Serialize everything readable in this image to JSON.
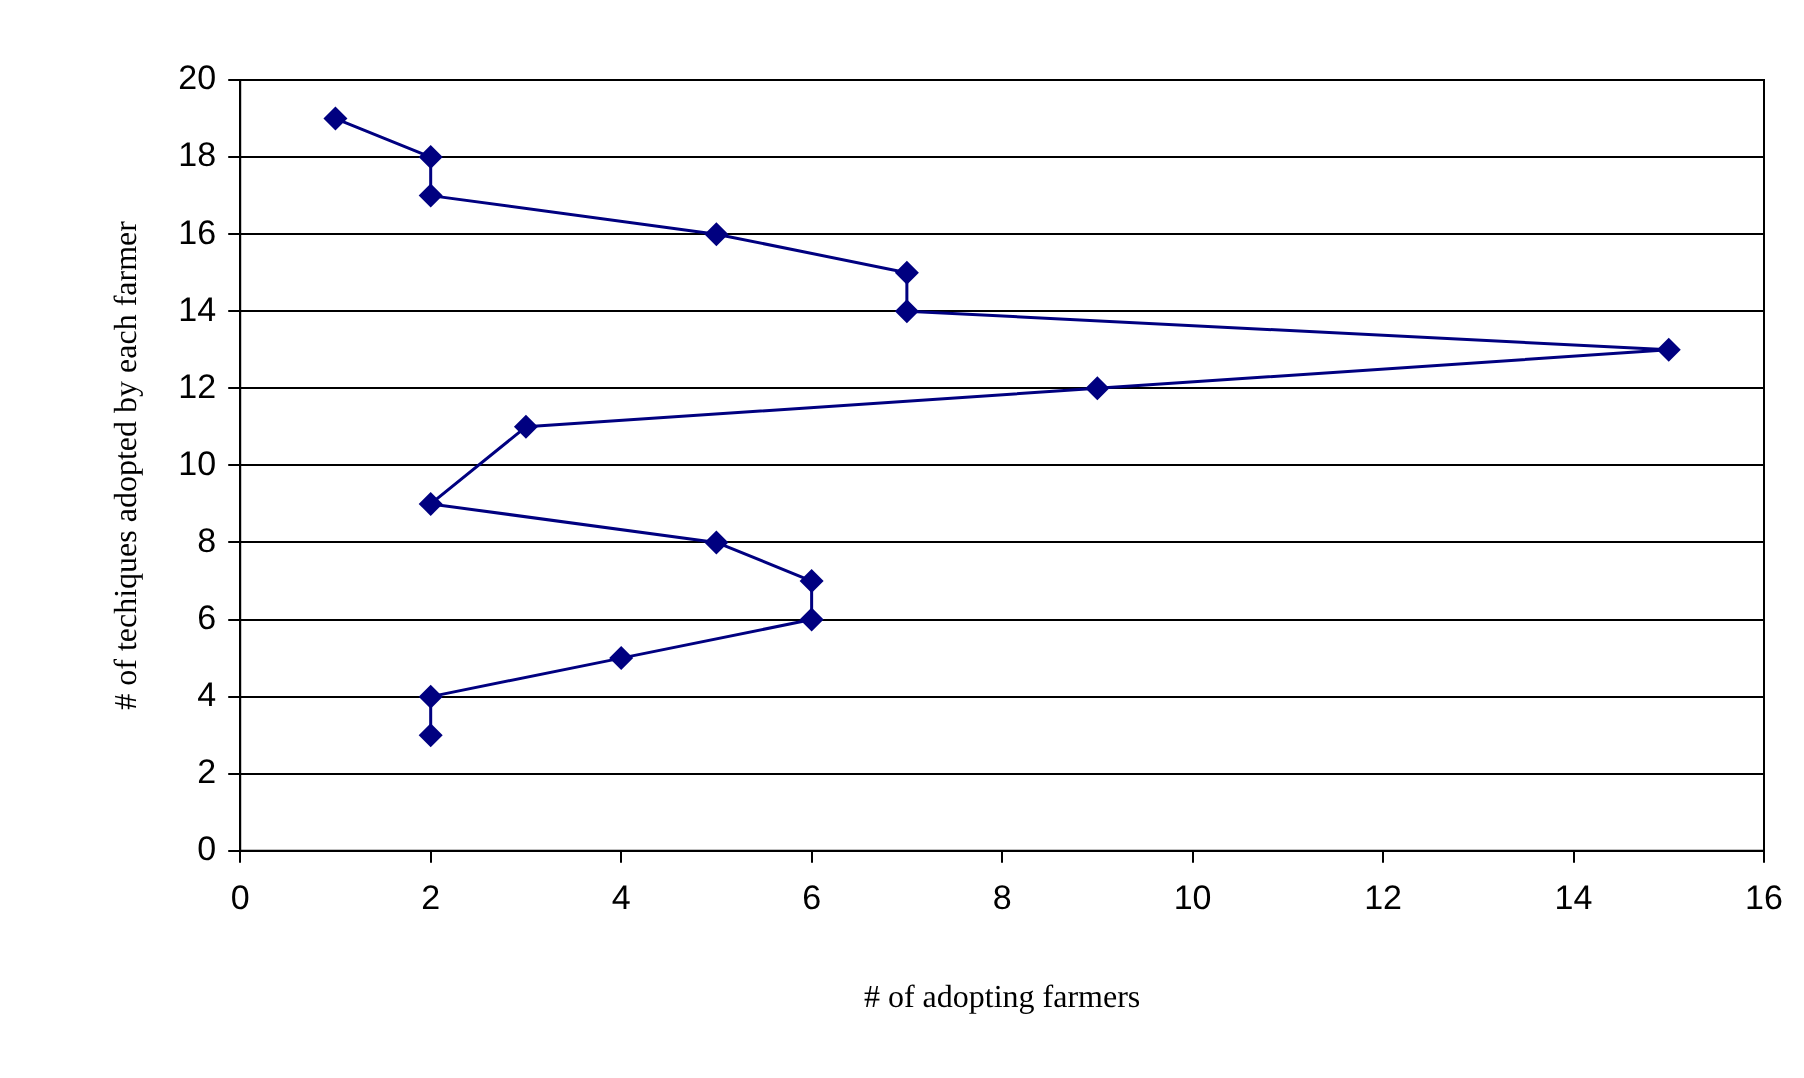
{
  "chart_data": {
    "type": "line",
    "xlabel": "# of adopting farmers",
    "ylabel": "# of techiques adopted by each farmer",
    "series": [
      {
        "color": "#000080",
        "x": [
          1,
          2,
          2,
          5,
          7,
          7,
          15,
          9,
          3,
          2,
          5,
          6,
          6,
          4,
          2,
          2
        ],
        "values": [
          19,
          18,
          17,
          16,
          15,
          14,
          13,
          12,
          11,
          9,
          8,
          7,
          6,
          5,
          4,
          3
        ]
      }
    ],
    "xlim": [
      0,
      16
    ],
    "xticks": [
      0,
      2,
      4,
      6,
      8,
      10,
      12,
      14,
      16
    ],
    "ylim": [
      0,
      20
    ],
    "yticks": [
      0,
      2,
      4,
      6,
      8,
      10,
      12,
      14,
      16,
      18,
      20
    ],
    "grid": "y",
    "legend": false,
    "marker": "diamond",
    "line_style": "solid"
  }
}
